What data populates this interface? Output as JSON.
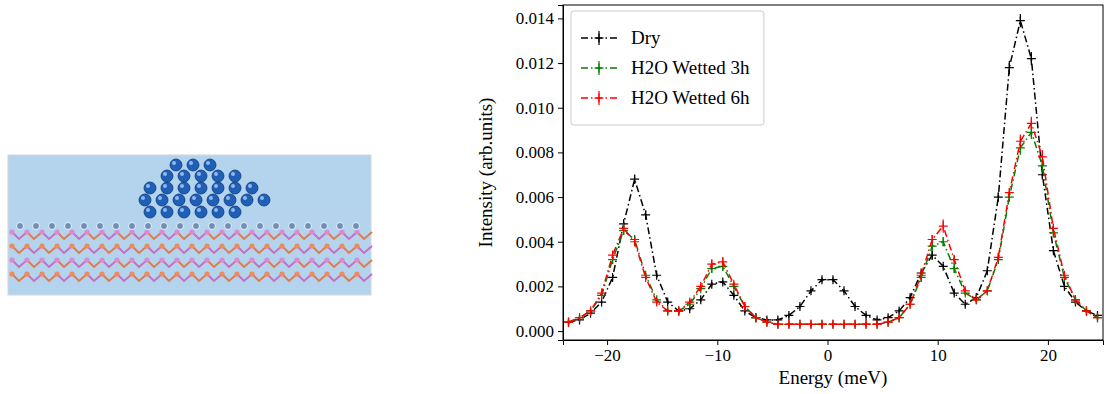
{
  "chart_data": {
    "type": "line",
    "xlabel": "Energy (meV)",
    "ylabel": "Intensity (arb.units)",
    "x": [
      -23.5,
      -22.5,
      -21.5,
      -20.5,
      -19.5,
      -18.5,
      -17.5,
      -16.5,
      -15.5,
      -14.5,
      -13.5,
      -12.5,
      -11.5,
      -10.5,
      -9.5,
      -8.5,
      -7.5,
      -6.5,
      -5.5,
      -4.5,
      -3.5,
      -2.5,
      -1.5,
      -0.5,
      0.5,
      1.5,
      2.5,
      3.5,
      4.5,
      5.5,
      6.5,
      7.5,
      8.5,
      9.5,
      10.5,
      11.5,
      12.5,
      13.5,
      14.5,
      15.5,
      16.5,
      17.5,
      18.5,
      19.5,
      20.5,
      21.5,
      22.5,
      23.5,
      24.5
    ],
    "series": [
      {
        "name": "Dry",
        "color": "#000000",
        "marker": "plus",
        "line_style": "dashdot",
        "values": [
          0.0004,
          0.0005,
          0.0008,
          0.0013,
          0.0024,
          0.0048,
          0.0068,
          0.0052,
          0.0025,
          0.0013,
          0.0009,
          0.001,
          0.0014,
          0.0021,
          0.0022,
          0.0016,
          0.0009,
          0.0006,
          0.0005,
          0.0005,
          0.0007,
          0.0011,
          0.0018,
          0.0023,
          0.0023,
          0.0018,
          0.0011,
          0.0007,
          0.0005,
          0.0006,
          0.0009,
          0.0015,
          0.0026,
          0.0034,
          0.0029,
          0.0017,
          0.0012,
          0.0015,
          0.0027,
          0.006,
          0.0118,
          0.0139,
          0.0122,
          0.007,
          0.0036,
          0.002,
          0.0013,
          0.0009,
          0.0007
        ],
        "errors": [
          0.0001,
          0.0001,
          0.0001,
          0.0001,
          0.0001,
          0.0002,
          0.0002,
          0.0002,
          0.0001,
          0.0001,
          0.0001,
          0.0001,
          0.0001,
          0.0001,
          0.0001,
          0.0001,
          0.0001,
          0.0001,
          0.0001,
          0.0001,
          0.0001,
          0.0001,
          0.0001,
          0.0001,
          0.0001,
          0.0001,
          0.0001,
          0.0001,
          0.0001,
          0.0001,
          0.0001,
          0.0001,
          0.0001,
          0.0002,
          0.0001,
          0.0001,
          0.0001,
          0.0001,
          0.0001,
          0.0002,
          0.0003,
          0.0003,
          0.0003,
          0.0002,
          0.0001,
          0.0001,
          0.0001,
          0.0001,
          0.0001
        ]
      },
      {
        "name": "H2O Wetted 3h",
        "color": "#008000",
        "marker": "plus",
        "line_style": "dashdot",
        "values": [
          0.0004,
          0.0006,
          0.0009,
          0.0016,
          0.0032,
          0.0045,
          0.0041,
          0.0025,
          0.0014,
          0.0009,
          0.0009,
          0.0012,
          0.0019,
          0.0028,
          0.0029,
          0.002,
          0.0011,
          0.0006,
          0.0004,
          0.0003,
          0.0003,
          0.0003,
          0.0003,
          0.0003,
          0.0003,
          0.0003,
          0.0003,
          0.0003,
          0.0003,
          0.0004,
          0.0006,
          0.0012,
          0.0024,
          0.0038,
          0.004,
          0.0028,
          0.0017,
          0.0014,
          0.0018,
          0.0032,
          0.006,
          0.0082,
          0.0089,
          0.0074,
          0.0044,
          0.0024,
          0.0014,
          0.0009,
          0.0006
        ],
        "errors": [
          0.0001,
          0.0001,
          0.0001,
          0.0001,
          0.0002,
          0.0002,
          0.0002,
          0.0001,
          0.0001,
          0.0001,
          0.0001,
          0.0001,
          0.0001,
          0.0002,
          0.0002,
          0.0001,
          0.0001,
          0.0001,
          0.0001,
          0.0001,
          0.0001,
          0.0001,
          0.0001,
          0.0001,
          0.0001,
          0.0001,
          0.0001,
          0.0001,
          0.0001,
          0.0001,
          0.0001,
          0.0001,
          0.0002,
          0.0002,
          0.0002,
          0.0002,
          0.0001,
          0.0001,
          0.0001,
          0.0002,
          0.0002,
          0.0003,
          0.0003,
          0.0003,
          0.0002,
          0.0001,
          0.0001,
          0.0001,
          0.0001
        ]
      },
      {
        "name": "H2O Wetted 6h",
        "color": "#ff0000",
        "marker": "plus",
        "line_style": "dashdot",
        "values": [
          0.0004,
          0.0006,
          0.0009,
          0.0017,
          0.0034,
          0.0046,
          0.004,
          0.0024,
          0.0013,
          0.0009,
          0.0009,
          0.0013,
          0.002,
          0.003,
          0.0031,
          0.0021,
          0.0011,
          0.0006,
          0.0004,
          0.0003,
          0.0003,
          0.0003,
          0.0003,
          0.0003,
          0.0003,
          0.0003,
          0.0003,
          0.0003,
          0.0003,
          0.0004,
          0.0006,
          0.0012,
          0.0025,
          0.0041,
          0.0047,
          0.0032,
          0.0018,
          0.0014,
          0.0018,
          0.0033,
          0.0062,
          0.0085,
          0.0093,
          0.0078,
          0.0046,
          0.0025,
          0.0014,
          0.0009,
          0.0006
        ],
        "errors": [
          0.0001,
          0.0001,
          0.0001,
          0.0001,
          0.0002,
          0.0002,
          0.0002,
          0.0001,
          0.0001,
          0.0001,
          0.0001,
          0.0001,
          0.0001,
          0.0002,
          0.0002,
          0.0001,
          0.0001,
          0.0001,
          0.0001,
          0.0001,
          0.0001,
          0.0001,
          0.0001,
          0.0001,
          0.0001,
          0.0001,
          0.0001,
          0.0001,
          0.0001,
          0.0001,
          0.0001,
          0.0001,
          0.0002,
          0.0002,
          0.0003,
          0.0002,
          0.0001,
          0.0001,
          0.0001,
          0.0002,
          0.0002,
          0.0003,
          0.0003,
          0.0003,
          0.0002,
          0.0001,
          0.0001,
          0.0001,
          0.0001
        ]
      }
    ],
    "xlim": [
      -24,
      25
    ],
    "ylim": [
      -0.0004,
      0.0146
    ],
    "xticks": [
      {
        "value": -20,
        "label": "−20"
      },
      {
        "value": -10,
        "label": "−10"
      },
      0,
      10,
      20
    ],
    "yticks": [
      {
        "value": 0,
        "label": "0.000"
      },
      {
        "value": 0.002,
        "label": "0.002"
      },
      {
        "value": 0.004,
        "label": "0.004"
      },
      {
        "value": 0.006,
        "label": "0.006"
      },
      {
        "value": 0.008,
        "label": "0.008"
      },
      {
        "value": 0.01,
        "label": "0.010"
      },
      {
        "value": 0.012,
        "label": "0.012"
      },
      {
        "value": 0.014,
        "label": "0.014"
      }
    ],
    "legend": "upper left",
    "grid": false
  }
}
